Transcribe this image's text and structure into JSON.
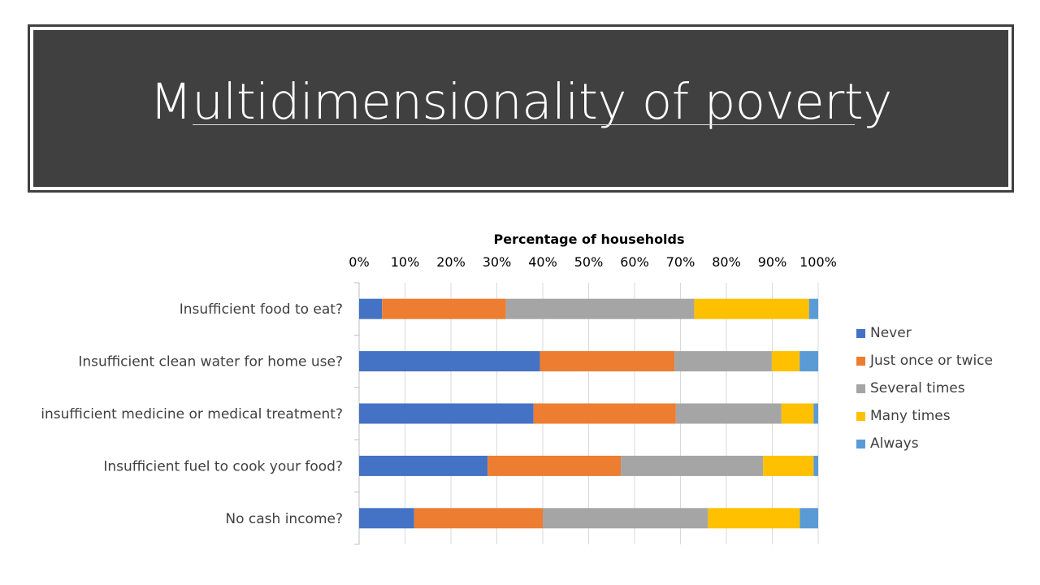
{
  "slide": {
    "title": "Multidimensionality of poverty"
  },
  "chart_data": {
    "type": "bar",
    "orientation": "horizontal",
    "stacked": "percent",
    "title": "Percentage of households",
    "categories": [
      "Insufficient food to eat?",
      "Insufficient clean water for home use?",
      "insufficient medicine or medical treatment?",
      "Insufficient fuel to cook your food?",
      "No cash income?"
    ],
    "series": [
      {
        "name": "Never",
        "color": "#4472C4",
        "values": [
          5,
          39,
          38,
          28,
          12
        ]
      },
      {
        "name": "Just once or twice",
        "color": "#ED7D31",
        "values": [
          27,
          29,
          31,
          29,
          28
        ]
      },
      {
        "name": "Several times",
        "color": "#A5A5A5",
        "values": [
          41,
          21,
          23,
          31,
          36
        ]
      },
      {
        "name": "Many times",
        "color": "#FFC000",
        "values": [
          25,
          6,
          7,
          11,
          20
        ]
      },
      {
        "name": "Always",
        "color": "#5B9BD5",
        "values": [
          2,
          4,
          1,
          1,
          4
        ]
      }
    ],
    "x_ticks": [
      "0%",
      "10%",
      "20%",
      "30%",
      "40%",
      "50%",
      "60%",
      "70%",
      "80%",
      "90%",
      "100%"
    ],
    "xlim": [
      0,
      100
    ],
    "x_axis_position": "top",
    "grid": true,
    "legend_position": "right"
  }
}
